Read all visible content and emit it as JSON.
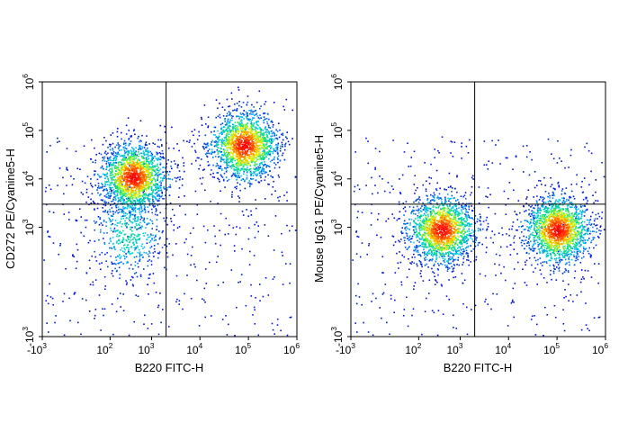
{
  "chart_data": [
    {
      "type": "scatter",
      "subtype": "flow-cytometry-density-dot-plot",
      "title": "",
      "xlabel": "B220 FITC-H",
      "ylabel": "CD272 PE/Cyanine5-H",
      "x_scale": "biexponential",
      "y_scale": "biexponential",
      "xlim": [
        "-10^3",
        "10^6"
      ],
      "ylim": [
        "-10^3",
        "10^6"
      ],
      "x_ticks": [
        {
          "base": "-10",
          "exp": "3",
          "value": -1000
        },
        {
          "base": "10",
          "exp": "2",
          "value": 100
        },
        {
          "base": "10",
          "exp": "3",
          "value": 1000
        },
        {
          "base": "10",
          "exp": "4",
          "value": 10000
        },
        {
          "base": "10",
          "exp": "5",
          "value": 100000
        },
        {
          "base": "10",
          "exp": "6",
          "value": 1000000
        }
      ],
      "y_ticks": [
        {
          "base": "-10",
          "exp": "3",
          "value": -1000
        },
        {
          "base": "10",
          "exp": "3",
          "value": 1000
        },
        {
          "base": "10",
          "exp": "4",
          "value": 10000
        },
        {
          "base": "10",
          "exp": "5",
          "value": 100000
        },
        {
          "base": "10",
          "exp": "6",
          "value": 1000000
        }
      ],
      "quadrant_gates": {
        "x": 2000,
        "y": 3000
      },
      "populations": [
        {
          "name": "B220+ CD272+",
          "x_center": 80000,
          "y_center": 50000,
          "density": "high"
        },
        {
          "name": "B220- CD272+",
          "x_center": 400,
          "y_center": 11000,
          "density": "high"
        },
        {
          "name": "B220- CD272-",
          "x_center": 300,
          "y_center": 800,
          "density": "low"
        }
      ],
      "color_scale": [
        "#0000cc",
        "#00c8ff",
        "#00e070",
        "#f0ff00",
        "#ff7a00",
        "#ff0000"
      ]
    },
    {
      "type": "scatter",
      "subtype": "flow-cytometry-density-dot-plot",
      "title": "",
      "xlabel": "B220 FITC-H",
      "ylabel": "Mouse IgG1 PE/Cyanine5-H",
      "x_scale": "biexponential",
      "y_scale": "biexponential",
      "xlim": [
        "-10^3",
        "10^6"
      ],
      "ylim": [
        "-10^3",
        "10^6"
      ],
      "x_ticks": [
        {
          "base": "-10",
          "exp": "3",
          "value": -1000
        },
        {
          "base": "10",
          "exp": "2",
          "value": 100
        },
        {
          "base": "10",
          "exp": "3",
          "value": 1000
        },
        {
          "base": "10",
          "exp": "4",
          "value": 10000
        },
        {
          "base": "10",
          "exp": "5",
          "value": 100000
        },
        {
          "base": "10",
          "exp": "6",
          "value": 1000000
        }
      ],
      "y_ticks": [
        {
          "base": "-10",
          "exp": "3",
          "value": -1000
        },
        {
          "base": "10",
          "exp": "3",
          "value": 1000
        },
        {
          "base": "10",
          "exp": "4",
          "value": 10000
        },
        {
          "base": "10",
          "exp": "5",
          "value": 100000
        },
        {
          "base": "10",
          "exp": "6",
          "value": 1000000
        }
      ],
      "quadrant_gates": {
        "x": 2000,
        "y": 3000
      },
      "populations": [
        {
          "name": "B220- IgG1-",
          "x_center": 400,
          "y_center": 900,
          "density": "high"
        },
        {
          "name": "B220+ IgG1-",
          "x_center": 100000,
          "y_center": 900,
          "density": "high"
        }
      ],
      "color_scale": [
        "#0000cc",
        "#00c8ff",
        "#00e070",
        "#f0ff00",
        "#ff7a00",
        "#ff0000"
      ]
    }
  ]
}
